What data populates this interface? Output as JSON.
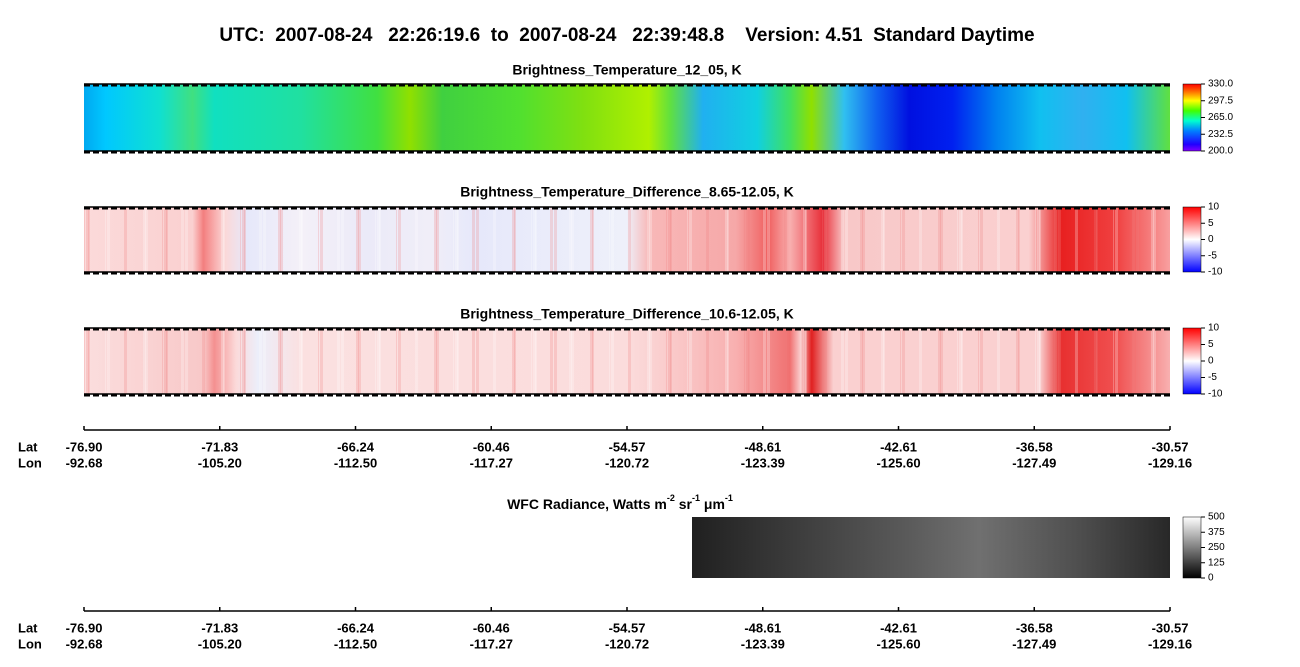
{
  "header": {
    "title": "UTC:  2007-08-24   22:26:19.6  to  2007-08-24   22:39:48.8    Version: 4.51  Standard Daytime"
  },
  "panels": [
    {
      "title": "Brightness_Temperature_12_05, K",
      "colorbar": {
        "ticks": [
          {
            "value": 200,
            "label": "200.0"
          },
          {
            "value": 232.5,
            "label": "232.5"
          },
          {
            "value": 265,
            "label": "265.0"
          },
          {
            "value": 297.5,
            "label": "297.5"
          },
          {
            "value": 330,
            "label": "330.0"
          }
        ]
      }
    },
    {
      "title": "Brightness_Temperature_Difference_8.65-12.05, K",
      "colorbar": {
        "ticks": [
          -10,
          -5,
          0,
          5,
          10
        ]
      }
    },
    {
      "title": "Brightness_Temperature_Difference_10.6-12.05, K",
      "colorbar": {
        "ticks": [
          -10,
          -5,
          0,
          5,
          10
        ]
      }
    },
    {
      "title_parts": [
        "WFC Radiance, Watts m",
        "-2",
        " sr",
        "-1",
        " μm",
        "-1"
      ],
      "colorbar": {
        "ticks": [
          0,
          125,
          250,
          375,
          500
        ]
      }
    }
  ],
  "axes": [
    {
      "lat_label": "Lat",
      "lon_label": "Lon",
      "lat": [
        "-76.90",
        "-71.83",
        "-66.24",
        "-60.46",
        "-54.57",
        "-48.61",
        "-42.61",
        "-36.58",
        "-30.57"
      ],
      "lon": [
        "-92.68",
        "-105.20",
        "-112.50",
        "-117.27",
        "-120.72",
        "-123.39",
        "-125.60",
        "-127.49",
        "-129.16"
      ]
    },
    {
      "lat_label": "Lat",
      "lon_label": "Lon",
      "lat": [
        "-76.90",
        "-71.83",
        "-66.24",
        "-60.46",
        "-54.57",
        "-48.61",
        "-42.61",
        "-36.58",
        "-30.57"
      ],
      "lon": [
        "-92.68",
        "-105.20",
        "-112.50",
        "-117.27",
        "-120.72",
        "-123.39",
        "-125.60",
        "-127.49",
        "-129.16"
      ]
    }
  ]
}
